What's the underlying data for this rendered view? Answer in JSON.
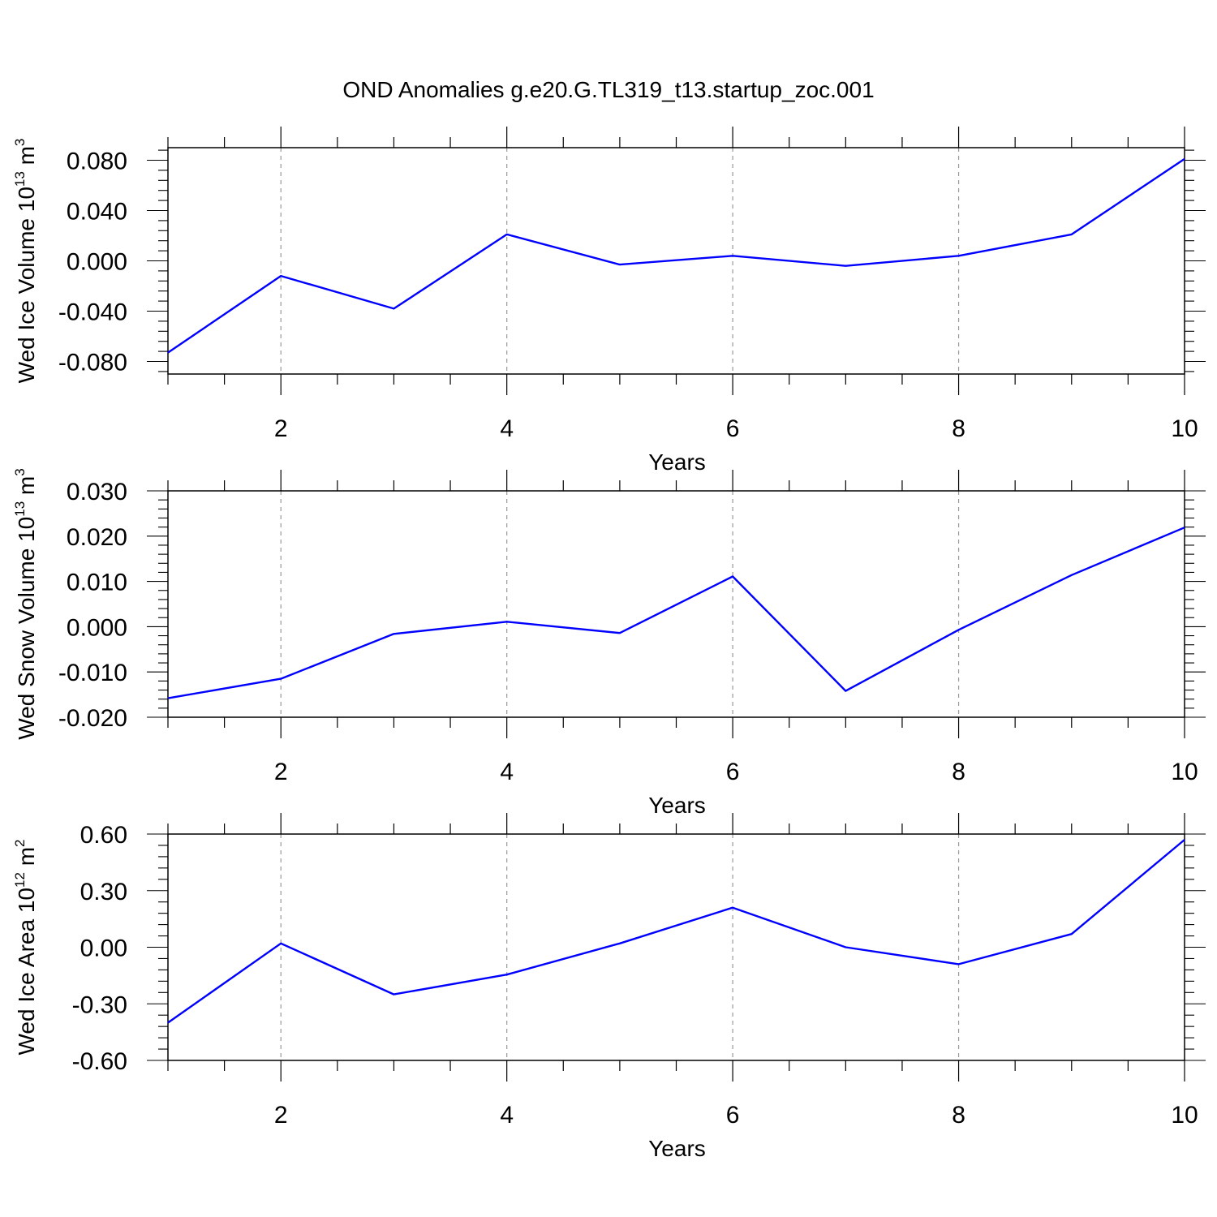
{
  "figure": {
    "title": "OND Anomalies g.e20.G.TL319_t13.startup_zoc.001",
    "line_color": "#0000ff",
    "grid_color": "#999999",
    "frame_color": "#000000"
  },
  "chart_data": [
    {
      "type": "line",
      "title": "",
      "xlabel": "Years",
      "ylabel_parts": [
        "Wed Ice Volume 10",
        "13",
        " m",
        "3"
      ],
      "xlim": [
        1,
        10
      ],
      "ylim": [
        -0.09,
        0.09
      ],
      "xticks": [
        2,
        4,
        6,
        8,
        10
      ],
      "xtick_labels": [
        "2",
        "4",
        "6",
        "8",
        "10"
      ],
      "yticks": [
        -0.08,
        -0.04,
        0.0,
        0.04,
        0.08
      ],
      "ytick_labels": [
        "-0.080",
        "-0.040",
        "0.000",
        "0.040",
        "0.080"
      ],
      "series": [
        {
          "name": "Wed Ice Volume",
          "x": [
            1,
            2,
            3,
            4,
            5,
            6,
            7,
            8,
            9,
            10
          ],
          "values": [
            -0.073,
            -0.012,
            -0.038,
            0.021,
            -0.003,
            0.004,
            -0.004,
            0.004,
            0.021,
            0.081
          ]
        }
      ]
    },
    {
      "type": "line",
      "title": "",
      "xlabel": "Years",
      "ylabel_parts": [
        "Wed Snow Volume 10",
        "13",
        " m",
        "3"
      ],
      "xlim": [
        1,
        10
      ],
      "ylim": [
        -0.02,
        0.03
      ],
      "xticks": [
        2,
        4,
        6,
        8,
        10
      ],
      "xtick_labels": [
        "2",
        "4",
        "6",
        "8",
        "10"
      ],
      "yticks": [
        -0.02,
        -0.01,
        0.0,
        0.01,
        0.02,
        0.03
      ],
      "ytick_labels": [
        "-0.020",
        "-0.010",
        "0.000",
        "0.010",
        "0.020",
        "0.030"
      ],
      "series": [
        {
          "name": "Wed Snow Volume",
          "x": [
            1,
            2,
            3,
            4,
            5,
            6,
            7,
            8,
            9,
            10
          ],
          "values": [
            -0.0158,
            -0.0115,
            -0.0016,
            0.0011,
            -0.0014,
            0.0111,
            -0.0142,
            -0.0007,
            0.0114,
            0.0219
          ]
        }
      ]
    },
    {
      "type": "line",
      "title": "",
      "xlabel": "Years",
      "ylabel_parts": [
        "Wed Ice Area 10",
        "12",
        " m",
        "2"
      ],
      "xlim": [
        1,
        10
      ],
      "ylim": [
        -0.6,
        0.6
      ],
      "xticks": [
        2,
        4,
        6,
        8,
        10
      ],
      "xtick_labels": [
        "2",
        "4",
        "6",
        "8",
        "10"
      ],
      "yticks": [
        -0.6,
        -0.3,
        0.0,
        0.3,
        0.6
      ],
      "ytick_labels": [
        "-0.60",
        "-0.30",
        "0.00",
        "0.30",
        "0.60"
      ],
      "series": [
        {
          "name": "Wed Ice Area",
          "x": [
            1,
            2,
            3,
            4,
            5,
            6,
            7,
            8,
            9,
            10
          ],
          "values": [
            -0.4,
            0.02,
            -0.25,
            -0.145,
            0.02,
            0.21,
            0.0,
            -0.09,
            0.07,
            0.57
          ]
        }
      ]
    }
  ]
}
